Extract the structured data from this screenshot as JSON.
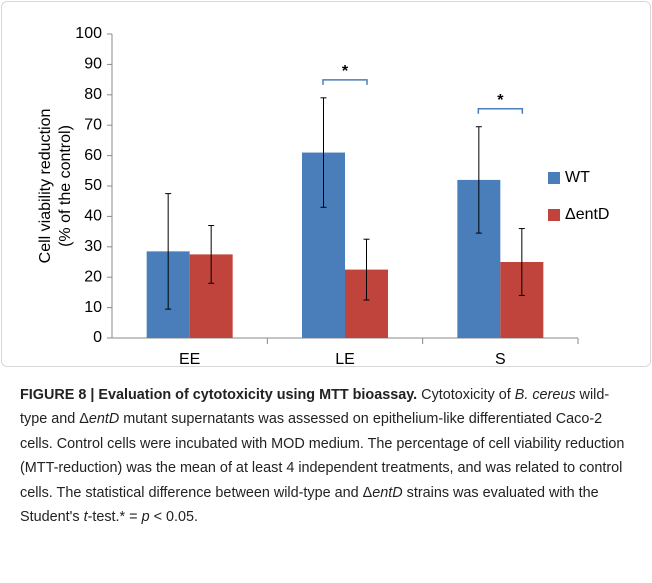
{
  "chart_data": {
    "type": "bar",
    "ylabel": [
      "Cell viability reduction",
      "(% of the control)"
    ],
    "categories": [
      "EE",
      "LE",
      "S"
    ],
    "series": [
      {
        "name": "WT",
        "color": "#4a7ebb",
        "values": [
          28.5,
          61,
          52
        ],
        "errors": [
          19,
          18,
          17.5
        ]
      },
      {
        "name": "ΔentD",
        "color": "#c0443c",
        "values": [
          27.5,
          22.5,
          25
        ],
        "errors": [
          9.5,
          10,
          11
        ]
      }
    ],
    "ylim": [
      0,
      100
    ],
    "yticks": [
      0,
      10,
      20,
      30,
      40,
      50,
      60,
      70,
      80,
      90,
      100
    ],
    "legend": "right",
    "significance": [
      {
        "category": "LE",
        "label": "*"
      },
      {
        "category": "S",
        "label": "*"
      }
    ]
  },
  "caption": {
    "label": "FIGURE 8 | Evaluation of cytotoxicity using MTT bioassay.",
    "segments": [
      {
        "text": " Cytotoxicity of "
      },
      {
        "text": "B. cereus",
        "italic": true
      },
      {
        "text": " wild-type and Δ"
      },
      {
        "text": "entD",
        "italic": true
      },
      {
        "text": " mutant supernatants was assessed on epithelium-like differentiated Caco-2 cells. Control cells were incubated with MOD medium. The percentage of cell viability reduction (MTT-reduction) was the mean of at least 4 independent treatments, and was related to control cells. The statistical difference between wild-type and Δ"
      },
      {
        "text": "entD",
        "italic": true
      },
      {
        "text": " strains was evaluated with the Student's "
      },
      {
        "text": "t",
        "italic": true
      },
      {
        "text": "-test.* = "
      },
      {
        "text": "p",
        "italic": true
      },
      {
        "text": " < 0.05."
      }
    ]
  }
}
